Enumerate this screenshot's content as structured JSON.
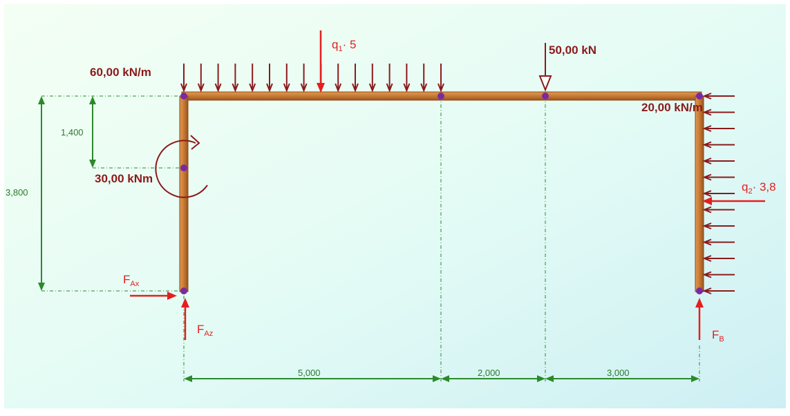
{
  "colors": {
    "member": "#c87f3a",
    "member_edge": "#8a4a16",
    "load": "#8b1a1a",
    "reaction": "#e61e1e",
    "dimension": "#2a8a2a",
    "node": "#7a2aa0"
  },
  "loads": {
    "q1_distributed": "60,00 kN/m",
    "point_load": "50,00 kN",
    "q2_distributed": "20,00 kN/m",
    "moment": "30,00 kNm"
  },
  "resultants": {
    "q1_main": "q",
    "q1_sub": "1",
    "q1_tail": "· 5",
    "q2_main": "q",
    "q2_sub": "2",
    "q2_tail": "· 3,8"
  },
  "reactions": {
    "fax_main": "F",
    "fax_sub": "Ax",
    "faz_main": "F",
    "faz_sub": "Az",
    "fb_main": "F",
    "fb_sub": "B"
  },
  "dimensions": {
    "height_total": "3,800",
    "height_moment": "1,400",
    "span_1": "5,000",
    "span_2": "2,000",
    "span_3": "3,000"
  }
}
